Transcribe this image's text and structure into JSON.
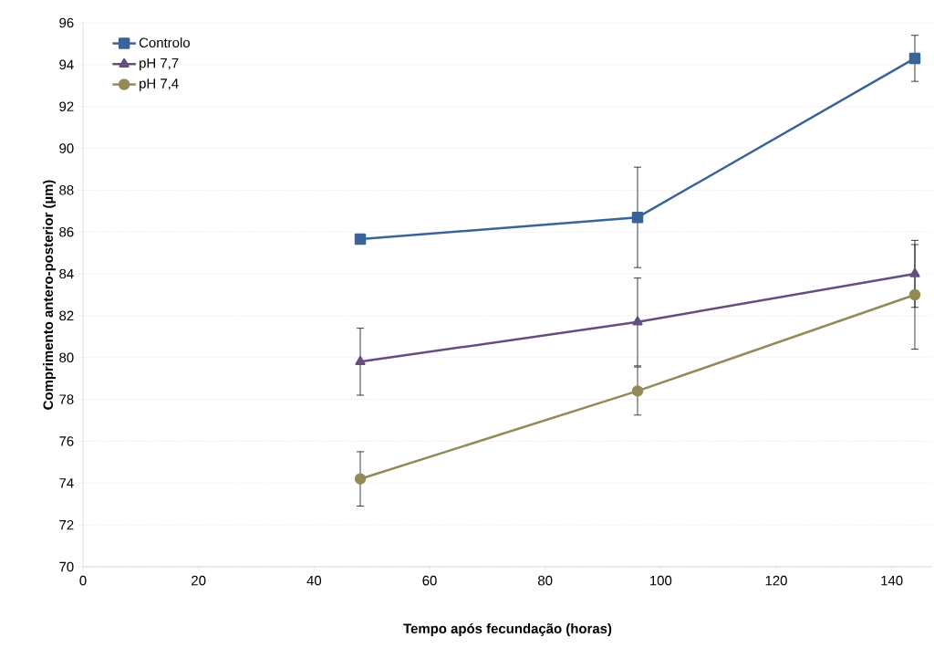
{
  "chart_data": {
    "type": "line",
    "xlabel": "Tempo após fecundação (horas)",
    "ylabel": "Comprimento antero-posterior (µm)",
    "x": [
      48,
      96,
      144
    ],
    "series": [
      {
        "name": "Controlo",
        "color": "#3a6497",
        "marker": "square",
        "values": [
          85.66,
          86.7,
          94.3
        ],
        "errors": [
          null,
          2.4,
          1.1
        ]
      },
      {
        "name": "pH 7,7",
        "color": "#654d7e",
        "marker": "triangle",
        "values": [
          79.8,
          81.7,
          84.0
        ],
        "errors": [
          1.6,
          2.1,
          1.6
        ]
      },
      {
        "name": "pH 7,4",
        "color": "#938a57",
        "marker": "circle",
        "values": [
          74.2,
          78.4,
          83.0
        ],
        "errors": [
          1.3,
          1.15,
          [
            80.4,
            85.4
          ]
        ]
      }
    ],
    "xlim": [
      0,
      147
    ],
    "ylim": [
      70,
      96
    ],
    "xticks": [
      0,
      20,
      40,
      60,
      80,
      100,
      120,
      140
    ],
    "yticks": [
      70,
      72,
      74,
      76,
      78,
      80,
      82,
      84,
      86,
      88,
      90,
      92,
      94,
      96
    ],
    "grid": "y",
    "legend": "top left",
    "line_style": "solid"
  }
}
